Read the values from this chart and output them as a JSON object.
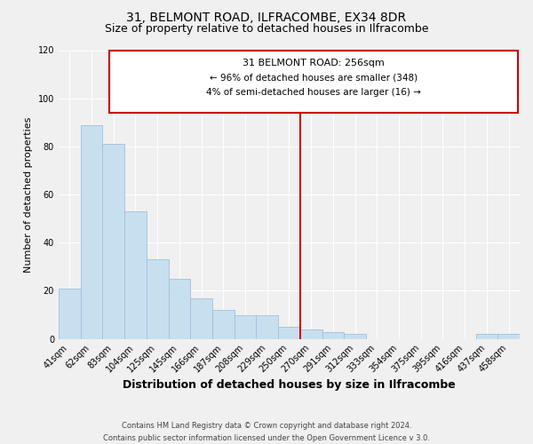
{
  "title": "31, BELMONT ROAD, ILFRACOMBE, EX34 8DR",
  "subtitle": "Size of property relative to detached houses in Ilfracombe",
  "xlabel": "Distribution of detached houses by size in Ilfracombe",
  "ylabel": "Number of detached properties",
  "bar_labels": [
    "41sqm",
    "62sqm",
    "83sqm",
    "104sqm",
    "125sqm",
    "145sqm",
    "166sqm",
    "187sqm",
    "208sqm",
    "229sqm",
    "250sqm",
    "270sqm",
    "291sqm",
    "312sqm",
    "333sqm",
    "354sqm",
    "375sqm",
    "395sqm",
    "416sqm",
    "437sqm",
    "458sqm"
  ],
  "bar_values": [
    21,
    89,
    81,
    53,
    33,
    25,
    17,
    12,
    10,
    10,
    5,
    4,
    3,
    2,
    0,
    0,
    0,
    0,
    0,
    2,
    2
  ],
  "bar_color": "#c8dff0",
  "bar_edge_color": "#a0c0dd",
  "vline_color": "#cc0000",
  "annotation_title": "31 BELMONT ROAD: 256sqm",
  "annotation_line1": "← 96% of detached houses are smaller (348)",
  "annotation_line2": "4% of semi-detached houses are larger (16) →",
  "annotation_box_color": "#ffffff",
  "annotation_box_edge": "#cc0000",
  "footer_line1": "Contains HM Land Registry data © Crown copyright and database right 2024.",
  "footer_line2": "Contains public sector information licensed under the Open Government Licence v 3.0.",
  "ylim": [
    0,
    120
  ],
  "background_color": "#f0f0f0",
  "grid_color": "#ffffff",
  "title_fontsize": 10,
  "subtitle_fontsize": 9,
  "xlabel_fontsize": 9,
  "ylabel_fontsize": 8,
  "tick_fontsize": 7,
  "footer_fontsize": 6,
  "ann_title_fontsize": 8,
  "ann_text_fontsize": 7.5
}
